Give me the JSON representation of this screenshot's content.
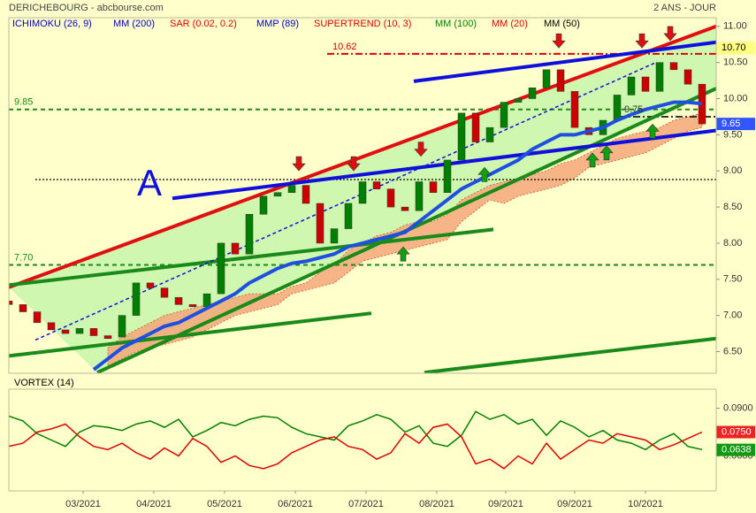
{
  "chart_data": [
    {
      "type": "candlestick",
      "title": "DERICHEBOURG - abcbourse.com",
      "subtitle": "2 ANS - JOUR",
      "annotation": "A",
      "legend": [
        {
          "name": "ICHIMOKU (26, 9)",
          "color": "#0000cc"
        },
        {
          "name": "MM (200)",
          "color": "#0000cc"
        },
        {
          "name": "SAR (0.02, 0.2)",
          "color": "#dd0000"
        },
        {
          "name": "MMP (89)",
          "color": "#0000cc"
        },
        {
          "name": "SUPERTREND (10, 3)",
          "color": "#dd0000"
        },
        {
          "name": "MM (100)",
          "color": "#008000"
        },
        {
          "name": "MM (20)",
          "color": "#dd0000"
        },
        {
          "name": "MM (50)",
          "color": "#000000"
        }
      ],
      "xlim": [
        0,
        200
      ],
      "ylim": [
        6.2,
        11.12
      ],
      "yticks": [
        {
          "value": 6.5,
          "label": "6.50"
        },
        {
          "value": 7,
          "label": "7.00"
        },
        {
          "value": 7.5,
          "label": "7.50"
        },
        {
          "value": 8,
          "label": "8.00"
        },
        {
          "value": 8.5,
          "label": "8.50"
        },
        {
          "value": 9,
          "label": "9.00"
        },
        {
          "value": 9.5,
          "label": "9.50"
        },
        {
          "value": 10,
          "label": "10.00"
        },
        {
          "value": 10.5,
          "label": "10.50"
        },
        {
          "value": 11,
          "label": "11.00"
        }
      ],
      "x": [
        0,
        4,
        8,
        12,
        16,
        20,
        24,
        28,
        32,
        36,
        40,
        44,
        48,
        52,
        56,
        60,
        64,
        68,
        72,
        76,
        80,
        84,
        88,
        92,
        96,
        100,
        104,
        108,
        112,
        116,
        120,
        124,
        128,
        132,
        136,
        140,
        144,
        148,
        152,
        156,
        160,
        164,
        168,
        172,
        176,
        180,
        184,
        188,
        192,
        196
      ],
      "open": [
        7.2,
        7.15,
        7.05,
        6.9,
        6.8,
        6.75,
        6.82,
        6.72,
        6.7,
        7.0,
        7.45,
        7.38,
        7.25,
        7.15,
        7.12,
        7.3,
        8.0,
        7.85,
        8.4,
        8.65,
        8.7,
        8.8,
        8.55,
        8.0,
        8.2,
        8.55,
        8.85,
        8.75,
        8.5,
        8.45,
        8.85,
        8.7,
        9.15,
        9.8,
        9.4,
        9.6,
        9.95,
        10.0,
        10.15,
        10.4,
        10.1,
        9.6,
        9.5,
        9.7,
        10.05,
        10.3,
        10.1,
        10.5,
        10.4,
        10.2
      ],
      "close": [
        7.15,
        7.05,
        6.9,
        6.8,
        6.75,
        6.82,
        6.72,
        6.68,
        7.0,
        7.45,
        7.38,
        7.25,
        7.15,
        7.12,
        7.3,
        8.0,
        7.85,
        8.4,
        8.65,
        8.7,
        8.8,
        8.55,
        8.0,
        8.2,
        8.55,
        8.85,
        8.75,
        8.5,
        8.45,
        8.85,
        8.7,
        9.15,
        9.8,
        9.4,
        9.6,
        9.95,
        10.0,
        10.15,
        10.4,
        10.1,
        9.6,
        9.5,
        9.7,
        10.05,
        10.3,
        10.1,
        10.5,
        10.4,
        10.2,
        9.65
      ],
      "up_color": "#008000",
      "down_color": "#cc0000",
      "ma_line": {
        "color": "#1f4fe0",
        "values": [
          null,
          null,
          null,
          null,
          null,
          null,
          6.25,
          6.4,
          6.55,
          6.65,
          6.75,
          6.85,
          6.9,
          7.0,
          7.1,
          7.2,
          7.3,
          7.45,
          7.55,
          7.65,
          7.72,
          7.75,
          7.8,
          7.85,
          7.95,
          8.0,
          8.05,
          8.1,
          8.15,
          8.3,
          8.45,
          8.6,
          8.75,
          8.85,
          8.95,
          9.05,
          9.15,
          9.3,
          9.4,
          9.5,
          9.5,
          9.55,
          9.6,
          9.7,
          9.78,
          9.85,
          9.9,
          9.95,
          9.95,
          9.93
        ]
      },
      "cloud": {
        "color": "#f5a77a",
        "lower": [
          null,
          null,
          null,
          null,
          null,
          null,
          null,
          6.3,
          6.4,
          6.5,
          6.55,
          6.6,
          6.65,
          6.7,
          6.8,
          6.9,
          7.0,
          7.05,
          7.1,
          7.15,
          7.3,
          7.35,
          7.4,
          7.45,
          7.6,
          7.75,
          7.8,
          7.85,
          7.9,
          7.95,
          8.0,
          8.05,
          8.3,
          8.45,
          8.6,
          8.55,
          8.65,
          8.7,
          8.75,
          8.8,
          8.9,
          9.05,
          9.1,
          9.15,
          9.2,
          9.25,
          9.35,
          9.45,
          9.55,
          9.6
        ],
        "upper": [
          null,
          null,
          null,
          null,
          null,
          null,
          null,
          6.55,
          6.7,
          6.8,
          6.9,
          7.0,
          7.05,
          7.1,
          7.15,
          7.2,
          7.25,
          7.3,
          7.3,
          7.3,
          7.4,
          7.45,
          7.6,
          7.7,
          7.9,
          8.0,
          8.1,
          8.15,
          8.25,
          8.3,
          8.3,
          8.4,
          8.6,
          8.7,
          8.8,
          8.85,
          8.9,
          8.95,
          9.0,
          9.1,
          9.15,
          9.25,
          9.35,
          9.45,
          9.5,
          9.55,
          9.6,
          9.7,
          9.75,
          9.8
        ]
      },
      "channel": {
        "color": "#c4f5a8",
        "between": [
          0,
          3
        ]
      },
      "trend_lines": [
        {
          "color": "#e01010",
          "width": 4,
          "x": [
            0,
            200
          ],
          "y": [
            7.39,
            11.0
          ]
        },
        {
          "color": "#1a8a1a",
          "width": 4,
          "x": [
            0,
            137
          ],
          "y": [
            7.42,
            8.19
          ]
        },
        {
          "color": "#1a8a1a",
          "width": 4,
          "x": [
            0,
            102.5
          ],
          "y": [
            6.44,
            7.03
          ]
        },
        {
          "color": "#1a8a1a",
          "width": 4,
          "x": [
            25,
            200
          ],
          "y": [
            6.21,
            10.14
          ]
        },
        {
          "color": "#1a8a1a",
          "width": 4,
          "x": [
            117.5,
            200
          ],
          "y": [
            6.21,
            6.68
          ]
        },
        {
          "color": "#1010dd",
          "width": 4,
          "x": [
            46.25,
            200
          ],
          "y": [
            8.62,
            9.56
          ]
        },
        {
          "color": "#1010dd",
          "width": 4,
          "x": [
            114.5,
            200
          ],
          "y": [
            10.24,
            10.78
          ]
        },
        {
          "color": "#1010dd",
          "width": 1.5,
          "dashed": true,
          "x": [
            7.5,
            182.5
          ],
          "y": [
            6.66,
            10.49
          ]
        }
      ],
      "levels": [
        {
          "value": 10.62,
          "color": "#dd0000",
          "style": "dashdot",
          "from": 90,
          "labeled": true
        },
        {
          "value": 9.85,
          "color": "#1a8a1a",
          "style": "dashed",
          "from": 0,
          "labeled": true
        },
        {
          "value": 7.7,
          "label": "7.70",
          "color": "#1a8a1a",
          "style": "dashed",
          "from": 0,
          "labeled": true
        },
        {
          "value": 8.88,
          "color": "#000000",
          "style": "dotted",
          "from": 7.5,
          "labeled": false
        },
        {
          "value": 9.75,
          "color": "#333333",
          "style": "dashdot",
          "from": 172.5,
          "labeled": true
        }
      ],
      "signals_down": {
        "color": "#dd1010",
        "x": [
          82,
          97.5,
          116.5,
          155.5,
          179,
          187
        ],
        "y": [
          9.1,
          9.1,
          9.3,
          10.8,
          10.8,
          10.9
        ]
      },
      "signals_up": {
        "color": "#10a010",
        "x": [
          111.5,
          134.5,
          165,
          169,
          182
        ],
        "y": [
          7.85,
          8.95,
          9.15,
          9.25,
          9.55
        ]
      },
      "last_labels": [
        {
          "value": 10.7,
          "label": "10.70",
          "color": "#ffff80",
          "text_color": "#000000"
        },
        {
          "value": 9.65,
          "color": "#3355ff",
          "text_color": "#ffffff"
        }
      ]
    },
    {
      "type": "line",
      "title": "VORTEX (14)",
      "xlim": [
        0,
        200
      ],
      "xticks": [
        {
          "value": 21,
          "label": "03/2021"
        },
        {
          "value": 41,
          "label": "04/2021"
        },
        {
          "value": 61,
          "label": "05/2021"
        },
        {
          "value": 81,
          "label": "06/2021"
        },
        {
          "value": 101,
          "label": "07/2021"
        },
        {
          "value": 121,
          "label": "08/2021"
        },
        {
          "value": 140.5,
          "label": "09/2021"
        },
        {
          "value": 160,
          "label": "09/2021"
        },
        {
          "value": 180,
          "label": "10/2021"
        }
      ],
      "ylim": [
        0.038,
        0.102
      ],
      "yticks": [
        {
          "value": 0.09,
          "label": "0.0900"
        },
        {
          "value": 0.06,
          "label": "0.0600"
        }
      ],
      "x": [
        0,
        4,
        8,
        12,
        16,
        20,
        24,
        28,
        32,
        36,
        40,
        44,
        48,
        52,
        56,
        60,
        64,
        68,
        72,
        76,
        80,
        84,
        88,
        92,
        96,
        100,
        104,
        108,
        112,
        116,
        120,
        124,
        128,
        132,
        136,
        140,
        144,
        148,
        152,
        156,
        160,
        164,
        168,
        172,
        176,
        180,
        184,
        188,
        192,
        196
      ],
      "series": [
        {
          "color": "#008000",
          "values": [
            0.085,
            0.082,
            0.074,
            0.07,
            0.066,
            0.075,
            0.079,
            0.078,
            0.076,
            0.08,
            0.082,
            0.078,
            0.083,
            0.072,
            0.076,
            0.081,
            0.079,
            0.083,
            0.085,
            0.084,
            0.078,
            0.074,
            0.072,
            0.07,
            0.079,
            0.082,
            0.086,
            0.083,
            0.075,
            0.079,
            0.068,
            0.066,
            0.073,
            0.088,
            0.083,
            0.086,
            0.08,
            0.083,
            0.073,
            0.082,
            0.078,
            0.072,
            0.076,
            0.07,
            0.068,
            0.064,
            0.07,
            0.074,
            0.066,
            0.064
          ]
        },
        {
          "color": "#dd0000",
          "values": [
            0.066,
            0.068,
            0.075,
            0.077,
            0.08,
            0.072,
            0.066,
            0.064,
            0.068,
            0.062,
            0.058,
            0.065,
            0.06,
            0.071,
            0.066,
            0.056,
            0.06,
            0.054,
            0.052,
            0.055,
            0.062,
            0.066,
            0.07,
            0.072,
            0.066,
            0.064,
            0.058,
            0.062,
            0.074,
            0.068,
            0.078,
            0.08,
            0.072,
            0.055,
            0.058,
            0.052,
            0.06,
            0.055,
            0.068,
            0.058,
            0.064,
            0.07,
            0.068,
            0.074,
            0.072,
            0.07,
            0.064,
            0.067,
            0.071,
            0.075
          ]
        }
      ],
      "last_labels": [
        {
          "value": 0.075,
          "label": "0.0750",
          "color": "#ee2222",
          "text_color": "#ffffff"
        },
        {
          "value": 0.0638,
          "color": "#119911",
          "text_color": "#ffffff"
        }
      ]
    }
  ]
}
